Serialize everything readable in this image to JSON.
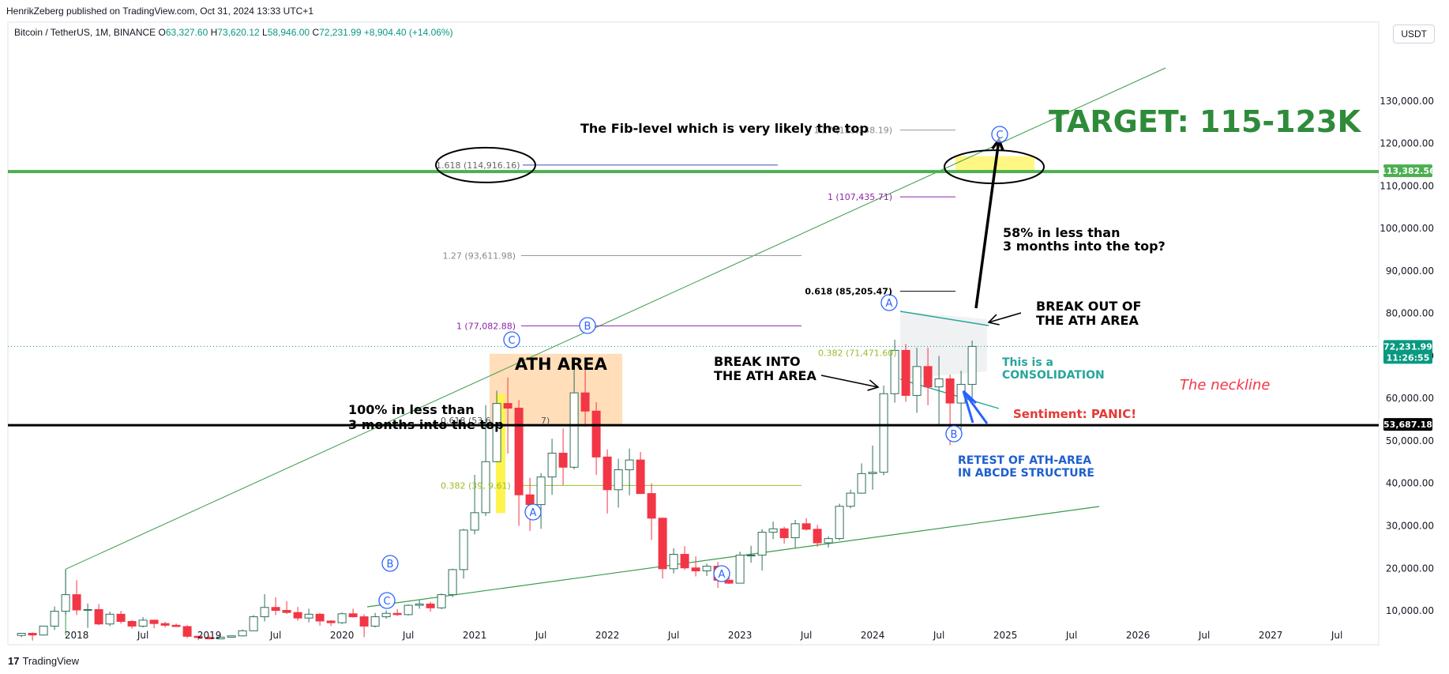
{
  "header": {
    "publisher": "HenrikZeberg published on TradingView.com, Oct 31, 2024 13:33 UTC+1"
  },
  "legend": {
    "symbol": "Bitcoin / TetherUS, 1M, BINANCE",
    "open_label": "O",
    "open": "63,327.60",
    "high_label": "H",
    "high": "73,620.12",
    "low_label": "L",
    "low": "58,946.00",
    "close_label": "C",
    "close": "72,231.99",
    "change": "+8,904.40 (+14.06%)"
  },
  "currency": "USDT",
  "brand": {
    "logo": "17",
    "name": "TradingView"
  },
  "colors": {
    "up": "#089981",
    "down": "#f23645",
    "target": "#2e8b3a",
    "fib1": "#8e24aa",
    "fib382": "#9bbb2a",
    "wave": "#2962ff"
  },
  "chart_data": {
    "type": "candlestick",
    "title": "",
    "yaxis": {
      "ticks": [
        10000,
        20000,
        30000,
        40000,
        50000,
        60000,
        70000,
        80000,
        90000,
        100000,
        110000,
        120000,
        130000
      ],
      "tick_labels": [
        "10,000.00",
        "20,000.00",
        "30,000.00",
        "40,000.00",
        "50,000.00",
        "60,000.00",
        "70,000.00",
        "80,000.00",
        "90,000.00",
        "100,000.00",
        "110,000.00",
        "120,000.00",
        "130,000.00"
      ],
      "range": [
        -3000,
        135000
      ]
    },
    "xaxis": {
      "ticks": [
        "2018-01",
        "2018-07",
        "2019-01",
        "2019-07",
        "2020-01",
        "2020-07",
        "2021-01",
        "2021-07",
        "2022-01",
        "2022-07",
        "2023-01",
        "2023-07",
        "2024-01",
        "2024-07",
        "2025-01",
        "2025-07",
        "2026-01",
        "2026-07",
        "2027-01",
        "2027-07"
      ],
      "tick_labels": [
        "2018",
        "Jul",
        "2019",
        "Jul",
        "2020",
        "Jul",
        "2021",
        "Jul",
        "2022",
        "Jul",
        "2023",
        "Jul",
        "2024",
        "Jul",
        "2025",
        "Jul",
        "2026",
        "Jul",
        "2027",
        "Jul"
      ]
    },
    "candles": [
      [
        "2017-08",
        4200,
        4700,
        3800,
        4700
      ],
      [
        "2017-09",
        4700,
        4900,
        3000,
        4300
      ],
      [
        "2017-10",
        4300,
        6400,
        4200,
        6400
      ],
      [
        "2017-11",
        6400,
        11000,
        5500,
        9900
      ],
      [
        "2017-12",
        9900,
        19800,
        9000,
        13800
      ],
      [
        "2018-01",
        13800,
        17200,
        9000,
        10200
      ],
      [
        "2018-02",
        10200,
        11700,
        6000,
        10300
      ],
      [
        "2018-03",
        10300,
        11600,
        6600,
        6900
      ],
      [
        "2018-04",
        6900,
        9800,
        6400,
        9200
      ],
      [
        "2018-05",
        9200,
        10000,
        7000,
        7500
      ],
      [
        "2018-06",
        7500,
        7800,
        5800,
        6400
      ],
      [
        "2018-07",
        6400,
        8500,
        6100,
        7800
      ],
      [
        "2018-08",
        7800,
        7900,
        5900,
        7000
      ],
      [
        "2018-09",
        7000,
        7400,
        6100,
        6600
      ],
      [
        "2018-10",
        6600,
        7000,
        6200,
        6300
      ],
      [
        "2018-11",
        6300,
        6600,
        3600,
        4000
      ],
      [
        "2018-12",
        4000,
        4200,
        3100,
        3700
      ],
      [
        "2019-01",
        3700,
        4100,
        3300,
        3400
      ],
      [
        "2019-02",
        3400,
        4200,
        3300,
        3800
      ],
      [
        "2019-03",
        3800,
        4100,
        3700,
        4100
      ],
      [
        "2019-04",
        4100,
        5600,
        4000,
        5300
      ],
      [
        "2019-05",
        5300,
        9000,
        5300,
        8600
      ],
      [
        "2019-06",
        8600,
        13900,
        7500,
        10800
      ],
      [
        "2019-07",
        10800,
        13200,
        9000,
        10100
      ],
      [
        "2019-08",
        10100,
        12300,
        9300,
        9600
      ],
      [
        "2019-09",
        9600,
        10900,
        7700,
        8300
      ],
      [
        "2019-10",
        8300,
        10500,
        7300,
        9200
      ],
      [
        "2019-11",
        9200,
        9500,
        6500,
        7600
      ],
      [
        "2019-12",
        7600,
        7800,
        6400,
        7200
      ],
      [
        "2020-01",
        7200,
        9600,
        6900,
        9300
      ],
      [
        "2020-02",
        9300,
        10500,
        8400,
        8600
      ],
      [
        "2020-03",
        8600,
        9200,
        3800,
        6400
      ],
      [
        "2020-04",
        6400,
        9500,
        6100,
        8600
      ],
      [
        "2020-05",
        8600,
        10100,
        8100,
        9400
      ],
      [
        "2020-06",
        9400,
        10400,
        8800,
        9100
      ],
      [
        "2020-07",
        9100,
        11500,
        8900,
        11300
      ],
      [
        "2020-08",
        11300,
        12500,
        10500,
        11600
      ],
      [
        "2020-09",
        11600,
        12100,
        9800,
        10700
      ],
      [
        "2020-10",
        10700,
        14100,
        10400,
        13800
      ],
      [
        "2020-11",
        13800,
        19900,
        13200,
        19700
      ],
      [
        "2020-12",
        19700,
        29300,
        17600,
        29000
      ],
      [
        "2021-01",
        29000,
        42000,
        28000,
        33100
      ],
      [
        "2021-02",
        33100,
        58400,
        32300,
        45100
      ],
      [
        "2021-03",
        45100,
        61800,
        45000,
        58800
      ],
      [
        "2021-04",
        58800,
        64900,
        47000,
        57700
      ],
      [
        "2021-05",
        57700,
        59600,
        30000,
        37300
      ],
      [
        "2021-06",
        37300,
        41300,
        28800,
        35000
      ],
      [
        "2021-07",
        35000,
        42400,
        29300,
        41500
      ],
      [
        "2021-08",
        41500,
        50500,
        37300,
        47100
      ],
      [
        "2021-09",
        47100,
        52900,
        39600,
        43800
      ],
      [
        "2021-10",
        43800,
        67000,
        43300,
        61300
      ],
      [
        "2021-11",
        61300,
        69000,
        53300,
        57000
      ],
      [
        "2021-12",
        57000,
        59100,
        42000,
        46200
      ],
      [
        "2022-01",
        46200,
        48000,
        32900,
        38500
      ],
      [
        "2022-02",
        38500,
        45800,
        34300,
        43200
      ],
      [
        "2022-03",
        43200,
        48200,
        37200,
        45500
      ],
      [
        "2022-04",
        45500,
        47400,
        37500,
        37600
      ],
      [
        "2022-05",
        37600,
        40000,
        26700,
        31800
      ],
      [
        "2022-06",
        31800,
        31900,
        17600,
        19900
      ],
      [
        "2022-07",
        19900,
        24700,
        18800,
        23300
      ],
      [
        "2022-08",
        23300,
        25200,
        19600,
        20100
      ],
      [
        "2022-09",
        20100,
        22800,
        18100,
        19400
      ],
      [
        "2022-10",
        19400,
        21100,
        18200,
        20500
      ],
      [
        "2022-11",
        20500,
        21500,
        15400,
        17200
      ],
      [
        "2022-12",
        17200,
        18400,
        16300,
        16500
      ],
      [
        "2023-01",
        16500,
        23900,
        16500,
        23100
      ],
      [
        "2023-02",
        23100,
        25300,
        21300,
        23100
      ],
      [
        "2023-03",
        23100,
        29200,
        19500,
        28500
      ],
      [
        "2023-04",
        28500,
        31000,
        26900,
        29300
      ],
      [
        "2023-05",
        29300,
        29800,
        25800,
        27200
      ],
      [
        "2023-06",
        27200,
        31400,
        24800,
        30500
      ],
      [
        "2023-07",
        30500,
        31800,
        28900,
        29200
      ],
      [
        "2023-08",
        29200,
        30200,
        25100,
        26000
      ],
      [
        "2023-09",
        26000,
        27500,
        24900,
        27000
      ],
      [
        "2023-10",
        27000,
        35200,
        26600,
        34600
      ],
      [
        "2023-11",
        34600,
        38500,
        34100,
        37700
      ],
      [
        "2023-12",
        37700,
        44700,
        37600,
        42300
      ],
      [
        "2024-01",
        42300,
        48900,
        38500,
        42600
      ],
      [
        "2024-02",
        42600,
        63000,
        41900,
        61100
      ],
      [
        "2024-03",
        61100,
        73800,
        59000,
        71300
      ],
      [
        "2024-04",
        71300,
        72800,
        59200,
        60700
      ],
      [
        "2024-05",
        60700,
        71900,
        56600,
        67500
      ],
      [
        "2024-06",
        67500,
        71900,
        58400,
        62700
      ],
      [
        "2024-07",
        62700,
        70000,
        53500,
        64600
      ],
      [
        "2024-08",
        64600,
        65600,
        49000,
        58900
      ],
      [
        "2024-09",
        58900,
        66500,
        52600,
        63300
      ],
      [
        "2024-10",
        63300,
        73620,
        58946,
        72232
      ]
    ],
    "horizontal_lines": [
      {
        "price": 113382.56,
        "label": "113,382.56",
        "color": "#4caf50"
      },
      {
        "price": 53687.18,
        "label": "53,687.18",
        "color": "#000000"
      }
    ],
    "current_price": {
      "value": "72,231.99",
      "countdown": "11:26:55",
      "price": 72231.99
    },
    "fib_levels": [
      {
        "ratio": "1.618",
        "price": "(114,916.16)",
        "value": 114916.16
      },
      {
        "ratio": "1.27",
        "price": "(93,611.98)",
        "value": 93611.98
      },
      {
        "ratio": "1",
        "price": "(77,082.88)",
        "value": 77082.88
      },
      {
        "ratio": "0.618",
        "price": "(53,6",
        "value": 53687.18,
        "trail": "7)"
      },
      {
        "ratio": "0.382",
        "price": "(39,",
        "trail": "9.61)",
        "value": 39499.61
      },
      {
        "ratio": "1.27",
        "price": "(123,148.19)",
        "value": 123148.19
      },
      {
        "ratio": "1",
        "price": "(107,435.71)",
        "value": 107435.71
      },
      {
        "ratio": "0.618",
        "price": "(85,205.47)",
        "value": 85205.47
      },
      {
        "ratio": "0.382",
        "price": "(71,471.60)",
        "value": 71471.6
      }
    ],
    "wave_labels": [
      "A",
      "B",
      "C",
      "A",
      "B",
      "C",
      "A",
      "B",
      "C"
    ],
    "annotations": {
      "fib_top": "The Fib-level which is very likely the top",
      "target": "TARGET: 115-123K",
      "rise_58_l1": "58% in less than",
      "rise_58_l2": "3 months into the top?",
      "breakout_l1": "BREAK OUT OF",
      "breakout_l2": "THE ATH AREA",
      "breakinto_l1": "BREAK INTO",
      "breakinto_l2": "THE ATH AREA",
      "consolidation_l1": "This is a",
      "consolidation_l2": "CONSOLIDATION",
      "neckline": "The neckline",
      "sentiment": "Sentiment: PANIC!",
      "retest_l1": "RETEST OF ATH-AREA",
      "retest_l2": "IN ABCDE STRUCTURE",
      "ath_area": "ATH AREA",
      "rise_100_l1": "100% in less than",
      "rise_100_l2": "3 months into the top"
    }
  }
}
